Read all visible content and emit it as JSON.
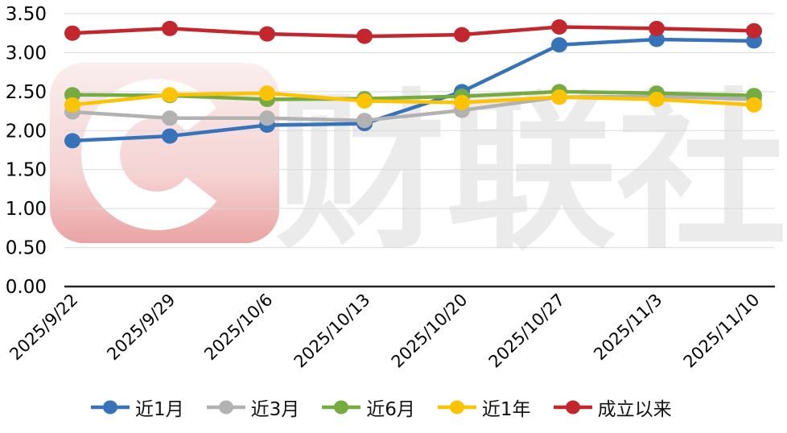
{
  "chart_data": {
    "type": "line",
    "x": [
      "2025/9/22",
      "2025/9/29",
      "2025/10/6",
      "2025/10/13",
      "2025/10/20",
      "2025/10/27",
      "2025/11/3",
      "2025/11/10"
    ],
    "series": [
      {
        "name": "近1月",
        "color": "#3673b8",
        "values": [
          1.87,
          1.93,
          2.07,
          2.09,
          2.5,
          3.1,
          3.17,
          3.15
        ]
      },
      {
        "name": "近3月",
        "color": "#b2b2b2",
        "values": [
          2.24,
          2.16,
          2.16,
          2.13,
          2.26,
          2.43,
          2.44,
          2.4
        ]
      },
      {
        "name": "近6月",
        "color": "#76ab42",
        "values": [
          2.46,
          2.45,
          2.4,
          2.41,
          2.44,
          2.5,
          2.48,
          2.45
        ]
      },
      {
        "name": "近1年",
        "color": "#fcc204",
        "values": [
          2.33,
          2.46,
          2.48,
          2.38,
          2.36,
          2.43,
          2.4,
          2.33
        ]
      },
      {
        "name": "成立以来",
        "color": "#c1272d",
        "values": [
          3.25,
          3.31,
          3.24,
          3.21,
          3.23,
          3.33,
          3.31,
          3.28
        ]
      }
    ],
    "ylim": [
      0,
      3.5
    ],
    "ytick_step": 0.5,
    "ytick_labels": [
      "0.00",
      "0.50",
      "1.00",
      "1.50",
      "2.00",
      "2.50",
      "3.00",
      "3.50"
    ],
    "grid": true,
    "legend_position": "bottom"
  },
  "watermark": {
    "brand_text": "财联社",
    "logo_icon": "cailian-c-icon"
  }
}
